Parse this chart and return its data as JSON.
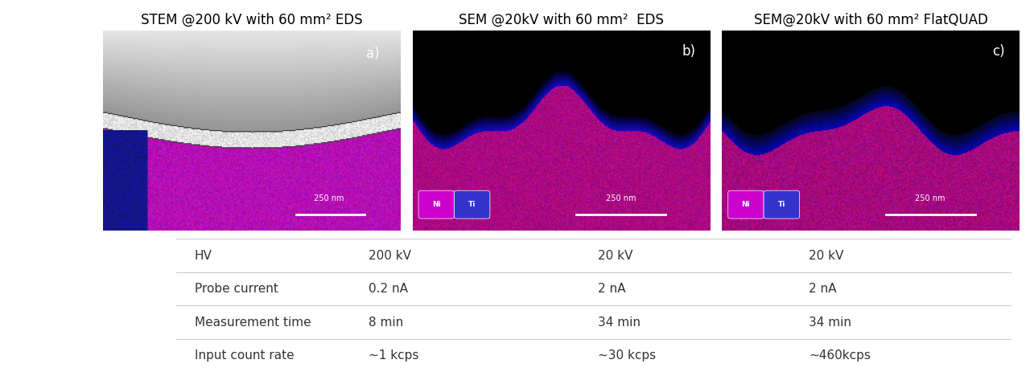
{
  "titles": [
    "STEM @200 kV with 60 mm² EDS",
    "SEM @20kV with 60 mm²  EDS",
    "SEM@20kV with 60 mm² FlatQUAD"
  ],
  "panel_labels": [
    "a)",
    "b)",
    "c)"
  ],
  "scale_bar_text": "250 nm",
  "table_rows": [
    {
      "label": "HV",
      "values": [
        "200 kV",
        "20 kV",
        "20 kV"
      ]
    },
    {
      "label": "Probe current",
      "values": [
        "0.2 nA",
        "2 nA",
        "2 nA"
      ]
    },
    {
      "label": "Measurement time",
      "values": [
        "8 min",
        "34 min",
        "34 min"
      ]
    },
    {
      "label": "Input count rate",
      "values": [
        "~1 kcps",
        "~30 kcps",
        "~460kcps"
      ]
    }
  ],
  "legend_labels": [
    "Ni",
    "Ti"
  ],
  "legend_colors": [
    "#FF00FF",
    "#4444FF"
  ],
  "bg_color": "#000000",
  "magenta": "#CC00CC",
  "blue_purple": "#4400AA",
  "white": "#FFFFFF",
  "title_fontsize": 13,
  "label_fontsize": 11,
  "table_fontsize": 11
}
